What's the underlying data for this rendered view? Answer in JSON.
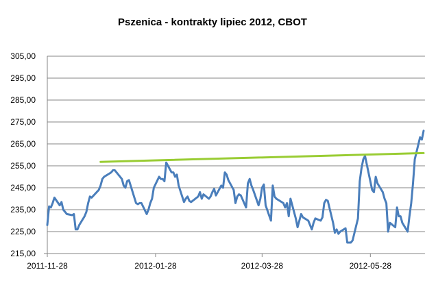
{
  "chart_data": {
    "type": "line",
    "title": "Pszenica - kontrakty lipiec 2012, CBOT",
    "xlabel": "",
    "ylabel": "",
    "ylim": [
      215,
      305
    ],
    "y_ticks": [
      "305,00",
      "295,00",
      "285,00",
      "275,00",
      "265,00",
      "255,00",
      "245,00",
      "235,00",
      "225,00",
      "215,00"
    ],
    "y_tick_values": [
      305,
      295,
      285,
      275,
      265,
      255,
      245,
      235,
      225,
      215
    ],
    "x_range": [
      "2011-11-28",
      "2012-06-27"
    ],
    "x_ticks": [
      "2011-11-28",
      "2012-01-28",
      "2012-03-28",
      "2012-05-28"
    ],
    "grid": "horizontal",
    "legend": "none",
    "series": [
      {
        "color": "#4a7ebb",
        "points": [
          [
            "2011-11-28",
            228
          ],
          [
            "2011-11-29",
            236.5
          ],
          [
            "2011-11-30",
            236
          ],
          [
            "2011-12-01",
            238
          ],
          [
            "2011-12-02",
            240.5
          ],
          [
            "2011-12-05",
            237
          ],
          [
            "2011-12-06",
            238.5
          ],
          [
            "2011-12-07",
            235
          ],
          [
            "2011-12-08",
            234
          ],
          [
            "2011-12-09",
            233
          ],
          [
            "2011-12-12",
            232.5
          ],
          [
            "2011-12-13",
            233
          ],
          [
            "2011-12-14",
            226
          ],
          [
            "2011-12-15",
            226
          ],
          [
            "2011-12-16",
            228
          ],
          [
            "2011-12-19",
            232
          ],
          [
            "2011-12-20",
            234
          ],
          [
            "2011-12-21",
            238
          ],
          [
            "2011-12-22",
            241
          ],
          [
            "2011-12-23",
            240.5
          ],
          [
            "2011-12-27",
            244
          ],
          [
            "2011-12-28",
            246
          ],
          [
            "2011-12-29",
            249
          ],
          [
            "2011-12-30",
            250
          ],
          [
            "2012-01-03",
            252
          ],
          [
            "2012-01-04",
            253
          ],
          [
            "2012-01-05",
            253
          ],
          [
            "2012-01-06",
            252
          ],
          [
            "2012-01-09",
            249
          ],
          [
            "2012-01-10",
            246
          ],
          [
            "2012-01-11",
            245
          ],
          [
            "2012-01-12",
            248
          ],
          [
            "2012-01-13",
            248.5
          ],
          [
            "2012-01-17",
            238
          ],
          [
            "2012-01-18",
            237.5
          ],
          [
            "2012-01-19",
            238
          ],
          [
            "2012-01-20",
            238
          ],
          [
            "2012-01-23",
            233
          ],
          [
            "2012-01-24",
            235
          ],
          [
            "2012-01-25",
            238
          ],
          [
            "2012-01-26",
            240
          ],
          [
            "2012-01-27",
            245
          ],
          [
            "2012-01-30",
            250
          ],
          [
            "2012-01-31",
            249
          ],
          [
            "2012-02-01",
            249
          ],
          [
            "2012-02-02",
            248
          ],
          [
            "2012-02-03",
            256.5
          ],
          [
            "2012-02-06",
            252
          ],
          [
            "2012-02-07",
            252
          ],
          [
            "2012-02-08",
            250
          ],
          [
            "2012-02-09",
            251
          ],
          [
            "2012-02-10",
            246
          ],
          [
            "2012-02-13",
            238.5
          ],
          [
            "2012-02-14",
            240
          ],
          [
            "2012-02-15",
            241
          ],
          [
            "2012-02-16",
            239
          ],
          [
            "2012-02-17",
            238.5
          ],
          [
            "2012-02-21",
            241
          ],
          [
            "2012-02-22",
            243
          ],
          [
            "2012-02-23",
            240
          ],
          [
            "2012-02-24",
            242
          ],
          [
            "2012-02-27",
            240
          ],
          [
            "2012-02-28",
            241
          ],
          [
            "2012-02-29",
            243
          ],
          [
            "2012-03-01",
            244.5
          ],
          [
            "2012-03-02",
            241.5
          ],
          [
            "2012-03-05",
            246
          ],
          [
            "2012-03-06",
            245
          ],
          [
            "2012-03-07",
            252
          ],
          [
            "2012-03-08",
            251
          ],
          [
            "2012-03-09",
            248.5
          ],
          [
            "2012-03-12",
            244
          ],
          [
            "2012-03-13",
            238
          ],
          [
            "2012-03-14",
            241
          ],
          [
            "2012-03-15",
            242
          ],
          [
            "2012-03-16",
            241.5
          ],
          [
            "2012-03-19",
            236
          ],
          [
            "2012-03-20",
            247
          ],
          [
            "2012-03-21",
            249
          ],
          [
            "2012-03-22",
            246
          ],
          [
            "2012-03-23",
            244
          ],
          [
            "2012-03-26",
            237
          ],
          [
            "2012-03-27",
            240
          ],
          [
            "2012-03-28",
            245
          ],
          [
            "2012-03-29",
            246.5
          ],
          [
            "2012-03-30",
            237
          ],
          [
            "2012-04-02",
            230
          ],
          [
            "2012-04-03",
            246
          ],
          [
            "2012-04-04",
            241
          ],
          [
            "2012-04-05",
            240
          ],
          [
            "2012-04-09",
            238
          ],
          [
            "2012-04-10",
            236
          ],
          [
            "2012-04-11",
            238
          ],
          [
            "2012-04-12",
            232
          ],
          [
            "2012-04-13",
            240
          ],
          [
            "2012-04-16",
            231
          ],
          [
            "2012-04-17",
            227
          ],
          [
            "2012-04-18",
            230
          ],
          [
            "2012-04-19",
            233
          ],
          [
            "2012-04-20",
            231.5
          ],
          [
            "2012-04-23",
            230
          ],
          [
            "2012-04-24",
            228
          ],
          [
            "2012-04-25",
            226
          ],
          [
            "2012-04-26",
            229
          ],
          [
            "2012-04-27",
            231
          ],
          [
            "2012-04-30",
            230
          ],
          [
            "2012-05-01",
            231.5
          ],
          [
            "2012-05-02",
            238
          ],
          [
            "2012-05-03",
            239.5
          ],
          [
            "2012-05-04",
            239
          ],
          [
            "2012-05-07",
            229
          ],
          [
            "2012-05-08",
            224.5
          ],
          [
            "2012-05-09",
            226
          ],
          [
            "2012-05-10",
            224
          ],
          [
            "2012-05-11",
            225
          ],
          [
            "2012-05-14",
            226.5
          ],
          [
            "2012-05-15",
            220
          ],
          [
            "2012-05-16",
            220
          ],
          [
            "2012-05-17",
            220
          ],
          [
            "2012-05-18",
            221
          ],
          [
            "2012-05-21",
            231
          ],
          [
            "2012-05-22",
            248
          ],
          [
            "2012-05-23",
            254
          ],
          [
            "2012-05-24",
            258
          ],
          [
            "2012-05-25",
            259.5
          ],
          [
            "2012-05-29",
            244
          ],
          [
            "2012-05-30",
            243
          ],
          [
            "2012-05-31",
            250
          ],
          [
            "2012-06-01",
            247
          ],
          [
            "2012-06-04",
            243
          ],
          [
            "2012-06-05",
            240
          ],
          [
            "2012-06-06",
            238
          ],
          [
            "2012-06-07",
            225
          ],
          [
            "2012-06-08",
            229
          ],
          [
            "2012-06-11",
            227
          ],
          [
            "2012-06-12",
            236
          ],
          [
            "2012-06-13",
            232
          ],
          [
            "2012-06-14",
            232
          ],
          [
            "2012-06-15",
            229
          ],
          [
            "2012-06-18",
            225
          ],
          [
            "2012-06-19",
            232
          ],
          [
            "2012-06-20",
            238
          ],
          [
            "2012-06-21",
            247
          ],
          [
            "2012-06-22",
            258
          ],
          [
            "2012-06-25",
            268
          ],
          [
            "2012-06-26",
            267
          ],
          [
            "2012-06-27",
            271
          ]
        ]
      },
      {
        "color": "#99cc33",
        "points": [
          [
            "2011-12-28",
            256.8
          ],
          [
            "2012-06-27",
            260.8
          ]
        ]
      }
    ]
  }
}
